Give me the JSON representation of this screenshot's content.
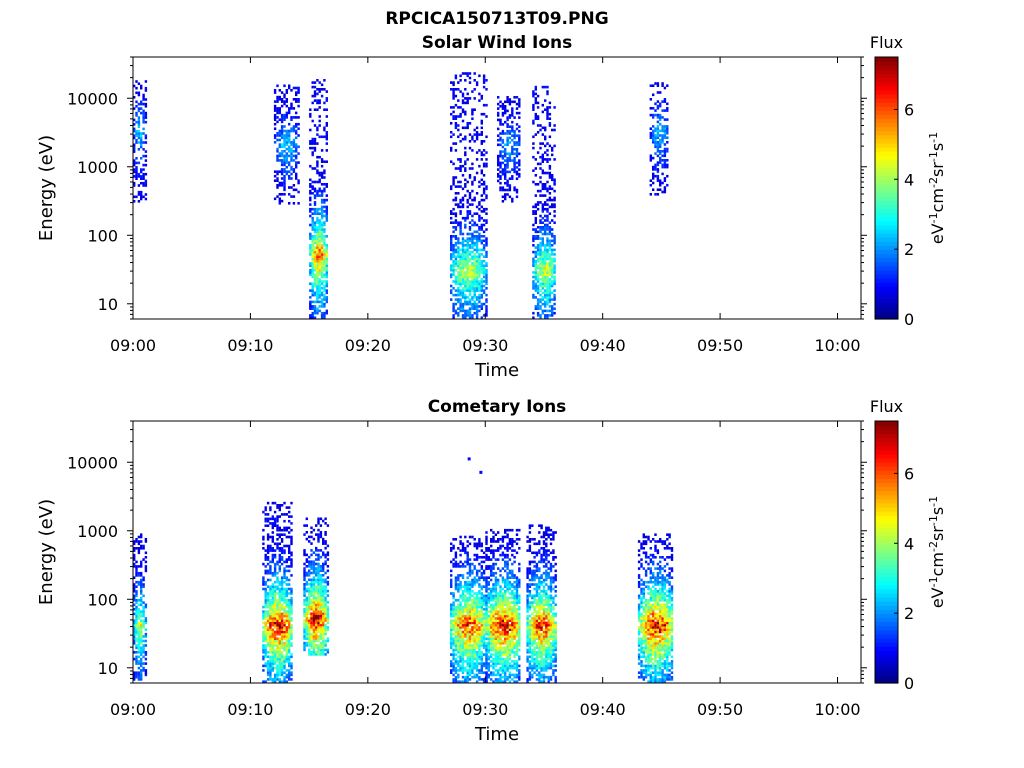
{
  "figure_title": "RPCICA150713T09.PNG",
  "chart_data": [
    {
      "type": "heatmap",
      "title": "Solar Wind Ions",
      "xlabel": "Time",
      "ylabel": "Energy (eV)",
      "y_scale": "log",
      "xlim": [
        "09:00",
        "10:02"
      ],
      "ylim": [
        6,
        40000
      ],
      "x_ticks": [
        "09:00",
        "09:10",
        "09:20",
        "09:30",
        "09:40",
        "09:50",
        "10:00"
      ],
      "y_ticks": [
        "10",
        "100",
        "1000",
        "10000"
      ],
      "colorbar": {
        "title": "Flux",
        "label": "eV-1cm-2sr-1s-1",
        "ticks": [
          "0",
          "2",
          "4",
          "6"
        ],
        "range": [
          0,
          7.5
        ],
        "colormap": "jet"
      },
      "bursts": [
        {
          "t_start": "09:00",
          "t_end": "09:01",
          "e_min": 300,
          "e_max": 17000,
          "peak_flux": 2.5,
          "peak_energy": 3000
        },
        {
          "t_start": "09:12",
          "t_end": "09:14",
          "e_min": 280,
          "e_max": 15000,
          "peak_flux": 2.5,
          "peak_energy": 2000
        },
        {
          "t_start": "09:15",
          "t_end": "09:16.5",
          "e_min": 6,
          "e_max": 18000,
          "peak_flux": 6.0,
          "peak_energy": 50
        },
        {
          "t_start": "09:27",
          "t_end": "09:30",
          "e_min": 6,
          "e_max": 22000,
          "peak_flux": 4.5,
          "peak_energy": 30
        },
        {
          "t_start": "09:31",
          "t_end": "09:33",
          "e_min": 300,
          "e_max": 10000,
          "peak_flux": 2.2,
          "peak_energy": 2000
        },
        {
          "t_start": "09:34",
          "t_end": "09:36",
          "e_min": 6,
          "e_max": 15000,
          "peak_flux": 4.5,
          "peak_energy": 30
        },
        {
          "t_start": "09:44",
          "t_end": "09:45.5",
          "e_min": 380,
          "e_max": 16000,
          "peak_flux": 2.5,
          "peak_energy": 3000
        }
      ]
    },
    {
      "type": "heatmap",
      "title": "Cometary Ions",
      "xlabel": "Time",
      "ylabel": "Energy (eV)",
      "y_scale": "log",
      "xlim": [
        "09:00",
        "10:02"
      ],
      "ylim": [
        6,
        40000
      ],
      "x_ticks": [
        "09:00",
        "09:10",
        "09:20",
        "09:30",
        "09:40",
        "09:50",
        "10:00"
      ],
      "y_ticks": [
        "10",
        "100",
        "1000",
        "10000"
      ],
      "colorbar": {
        "title": "Flux",
        "label": "eV-1cm-2sr-1s-1",
        "ticks": [
          "0",
          "2",
          "4",
          "6"
        ],
        "range": [
          0,
          7.5
        ],
        "colormap": "jet"
      },
      "bursts": [
        {
          "t_start": "09:00",
          "t_end": "09:01",
          "e_min": 6,
          "e_max": 900,
          "peak_flux": 4.5,
          "peak_energy": 40
        },
        {
          "t_start": "09:11",
          "t_end": "09:13.5",
          "e_min": 6,
          "e_max": 2500,
          "peak_flux": 7.0,
          "peak_energy": 40
        },
        {
          "t_start": "09:14.5",
          "t_end": "09:16.5",
          "e_min": 15,
          "e_max": 1500,
          "peak_flux": 7.0,
          "peak_energy": 50
        },
        {
          "t_start": "09:27",
          "t_end": "09:30",
          "e_min": 6,
          "e_max": 800,
          "peak_flux": 6.5,
          "peak_energy": 40
        },
        {
          "t_start": "09:30",
          "t_end": "09:33",
          "e_min": 6,
          "e_max": 1000,
          "peak_flux": 7.0,
          "peak_energy": 40
        },
        {
          "t_start": "09:33.5",
          "t_end": "09:36",
          "e_min": 6,
          "e_max": 1200,
          "peak_flux": 6.5,
          "peak_energy": 40
        },
        {
          "t_start": "09:43",
          "t_end": "09:46",
          "e_min": 6,
          "e_max": 900,
          "peak_flux": 7.0,
          "peak_energy": 40
        }
      ],
      "points": [
        {
          "t": "09:28.5",
          "energy": 11000,
          "flux": 1.0
        },
        {
          "t": "09:29.5",
          "energy": 7000,
          "flux": 1.0
        }
      ]
    }
  ]
}
